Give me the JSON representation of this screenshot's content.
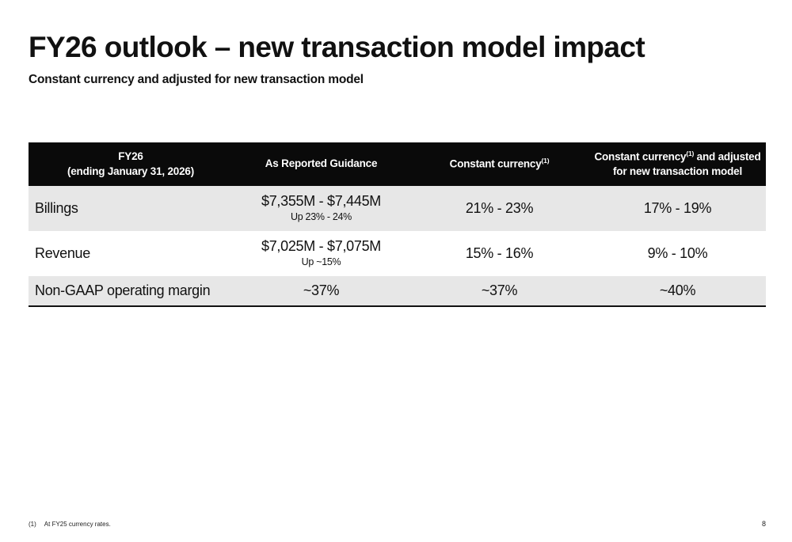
{
  "slide": {
    "title": "FY26 outlook – new transaction model impact",
    "subtitle": "Constant currency and adjusted for new transaction model",
    "page_number": "8"
  },
  "table": {
    "headers": {
      "col0_line1": "FY26",
      "col0_line2": "(ending January 31, 2026)",
      "col1": "As Reported Guidance",
      "col2_text": "Constant currency",
      "col2_sup": "(1)",
      "col3_text_a": "Constant currency",
      "col3_sup": "(1)",
      "col3_text_b": " and adjusted",
      "col3_line2": "for new transaction model"
    },
    "rows": [
      {
        "label": "Billings",
        "reported_main": "$7,355M - $7,445M",
        "reported_sub": "Up 23% - 24%",
        "constant_currency": "21% - 23%",
        "adjusted": "17% - 19%"
      },
      {
        "label": "Revenue",
        "reported_main": "$7,025M - $7,075M",
        "reported_sub": "Up ~15%",
        "constant_currency": "15% - 16%",
        "adjusted": "9% - 10%"
      },
      {
        "label": "Non-GAAP operating margin",
        "reported_main": "~37%",
        "constant_currency": "~37%",
        "adjusted": "~40%"
      }
    ]
  },
  "footnote": {
    "marker": "(1)",
    "text": "At FY25 currency rates."
  }
}
